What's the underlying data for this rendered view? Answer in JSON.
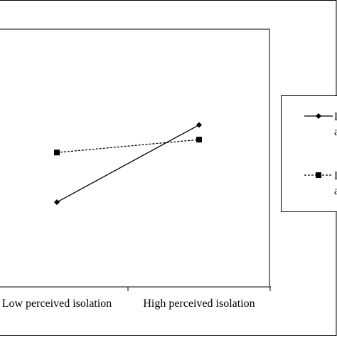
{
  "chart_data": {
    "type": "line",
    "categories": [
      "Low perceived isolation",
      "High perceived isolation"
    ],
    "series": [
      {
        "name": "L",
        "name_line2": "a",
        "values": [
          2.3,
          4.4
        ],
        "style": "solid",
        "marker": "diamond",
        "color": "#000000"
      },
      {
        "name": "L",
        "name_line2": "a",
        "values": [
          3.65,
          4.0
        ],
        "style": "dashed",
        "marker": "square",
        "color": "#000000"
      }
    ],
    "ylim": [
      0,
      7
    ],
    "grid": false,
    "legend_position": "right"
  }
}
